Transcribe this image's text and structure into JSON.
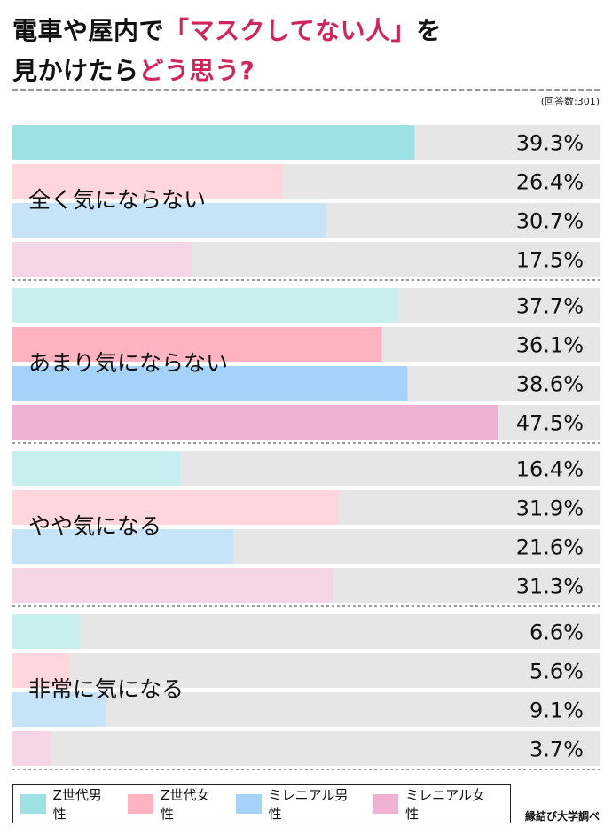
{
  "title": {
    "line1_a": "電車や屋内で",
    "line1_b": "「マスクしてない人」",
    "line1_c": "を",
    "line2_a": "見かけたら",
    "line2_b": "どう思う?"
  },
  "note": "(回答数:301)",
  "source": "縁結び大学調べ",
  "colors": {
    "accent": "#d2245b",
    "track": "#e6e6e6",
    "series_dark": [
      "#9ee1e4",
      "#ffb3c0",
      "#a5d2f9",
      "#efb2d3"
    ],
    "series_light": [
      "#c8eff0",
      "#ffd6de",
      "#c6e3f8",
      "#f6d5e6"
    ]
  },
  "chart_data": {
    "type": "bar",
    "orientation": "horizontal",
    "categories": [
      "全く気にならない",
      "あまり気にならない",
      "やや気になる",
      "非常に気になる"
    ],
    "series": [
      {
        "name": "Z世代男性",
        "values": [
          39.3,
          37.7,
          16.4,
          6.6
        ]
      },
      {
        "name": "Z世代女性",
        "values": [
          26.4,
          36.1,
          31.9,
          5.6
        ]
      },
      {
        "name": "ミレニアル男性",
        "values": [
          30.7,
          38.6,
          21.6,
          9.1
        ]
      },
      {
        "name": "ミレニアル女性",
        "values": [
          17.5,
          47.5,
          31.3,
          3.7
        ]
      }
    ],
    "value_labels": [
      [
        "39.3%",
        "26.4%",
        "30.7%",
        "17.5%"
      ],
      [
        "37.7%",
        "36.1%",
        "38.6%",
        "47.5%"
      ],
      [
        "16.4%",
        "31.9%",
        "21.6%",
        "31.3%"
      ],
      [
        "6.6%",
        "5.6%",
        "9.1%",
        "3.7%"
      ]
    ],
    "highlight": [
      [
        0,
        0
      ],
      [
        1,
        1
      ],
      [
        1,
        2
      ],
      [
        1,
        3
      ]
    ],
    "xlim": [
      0,
      47.5
    ],
    "legend": "bottom"
  }
}
